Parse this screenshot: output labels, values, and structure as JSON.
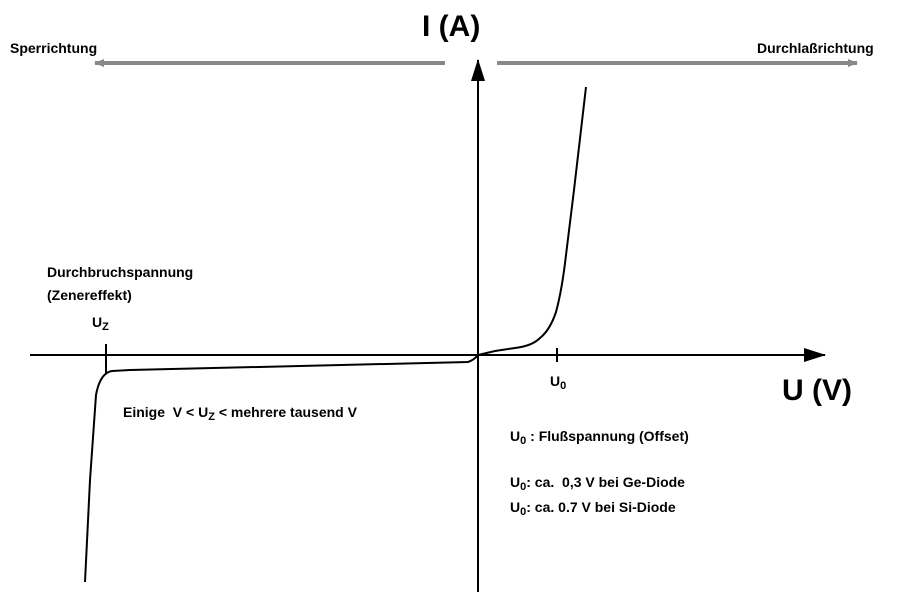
{
  "axes": {
    "y_label": "I (A)",
    "x_label": "U (V)"
  },
  "directions": {
    "left": "Sperrichtung",
    "right": "Durchlaßrichtung"
  },
  "breakdown": {
    "lines": [
      "Durchbruchspannung",
      "(Zenereffekt)"
    ],
    "symbol": {
      "base": "U",
      "sub": "Z"
    }
  },
  "range_note": {
    "before": "Einige  V < U",
    "sub": "Z",
    "after": " < mehrere tausend V"
  },
  "offset_tick": {
    "base": "U",
    "sub": "0"
  },
  "notes": [
    {
      "base": "U",
      "sub": "0",
      "text": " : Flußspannung (Offset)"
    },
    {
      "base": "U",
      "sub": "0",
      "text": ": ca.  0,3 V bei Ge-Diode"
    },
    {
      "base": "U",
      "sub": "0",
      "text": ": ca. 0.7 V bei Si-Diode"
    }
  ]
}
